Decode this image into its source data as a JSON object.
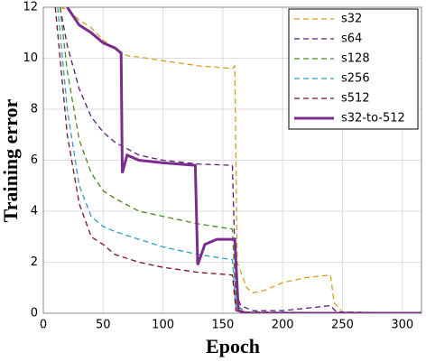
{
  "chart_data": {
    "type": "line",
    "xlabel": "Epoch",
    "ylabel": "Training error",
    "xlim": [
      0,
      316
    ],
    "ylim": [
      0,
      12
    ],
    "xticks": [
      0,
      50,
      100,
      150,
      200,
      250,
      300
    ],
    "yticks": [
      0,
      2,
      4,
      6,
      8,
      10,
      12
    ],
    "grid": true,
    "legend": "upper right",
    "series": [
      {
        "name": "s32",
        "color": "#d4a020",
        "dashed": true,
        "x": [
          14,
          20,
          30,
          40,
          50,
          60,
          70,
          80,
          100,
          130,
          158,
          160,
          162,
          170,
          175,
          185,
          200,
          220,
          240,
          243,
          250,
          316
        ],
        "values": [
          12,
          11.9,
          11.5,
          11.2,
          10.7,
          10.4,
          10.1,
          10.05,
          9.9,
          9.7,
          9.6,
          9.7,
          2,
          1,
          0.8,
          0.9,
          1.2,
          1.4,
          1.5,
          0.4,
          0.05,
          0
        ]
      },
      {
        "name": "s64",
        "color": "#5b1a78",
        "dashed": true,
        "x": [
          14,
          20,
          30,
          40,
          50,
          60,
          80,
          100,
          130,
          158,
          161,
          165,
          175,
          200,
          220,
          240,
          245,
          316
        ],
        "values": [
          12,
          10.5,
          8.8,
          7.7,
          7.1,
          6.7,
          6.2,
          6.0,
          5.85,
          5.8,
          0.8,
          0.3,
          0.1,
          0.1,
          0.2,
          0.3,
          0.05,
          0
        ]
      },
      {
        "name": "s128",
        "color": "#4a8a1a",
        "dashed": true,
        "x": [
          14,
          20,
          30,
          40,
          50,
          60,
          80,
          100,
          130,
          158,
          161,
          170,
          316
        ],
        "values": [
          12,
          9.5,
          6.8,
          5.5,
          4.8,
          4.5,
          4,
          3.8,
          3.5,
          3.3,
          0.3,
          0.05,
          0
        ]
      },
      {
        "name": "s256",
        "color": "#2a9ac8",
        "dashed": true,
        "x": [
          12,
          20,
          30,
          40,
          50,
          60,
          80,
          100,
          130,
          158,
          161,
          170,
          316
        ],
        "values": [
          12,
          8,
          5,
          3.8,
          3.4,
          3.2,
          2.9,
          2.6,
          2.3,
          2.1,
          0.2,
          0,
          0
        ]
      },
      {
        "name": "s512",
        "color": "#7a1020",
        "dashed": true,
        "x": [
          10,
          20,
          30,
          40,
          50,
          60,
          80,
          100,
          130,
          158,
          161,
          170,
          316
        ],
        "values": [
          12,
          7,
          4.3,
          3,
          2.7,
          2.3,
          2,
          1.8,
          1.6,
          1.5,
          0.1,
          0,
          0
        ]
      },
      {
        "name": "s32-to-512",
        "color": "#7b2d8e",
        "dashed": false,
        "x": [
          20,
          30,
          40,
          50,
          60,
          65,
          66,
          70,
          80,
          100,
          127,
          129,
          135,
          145,
          160,
          163,
          170,
          316
        ],
        "values": [
          12,
          11.3,
          11,
          10.6,
          10.4,
          10.2,
          5.5,
          6.2,
          6,
          5.9,
          5.8,
          1.9,
          2.7,
          2.9,
          2.9,
          0.1,
          0,
          0
        ]
      }
    ]
  }
}
